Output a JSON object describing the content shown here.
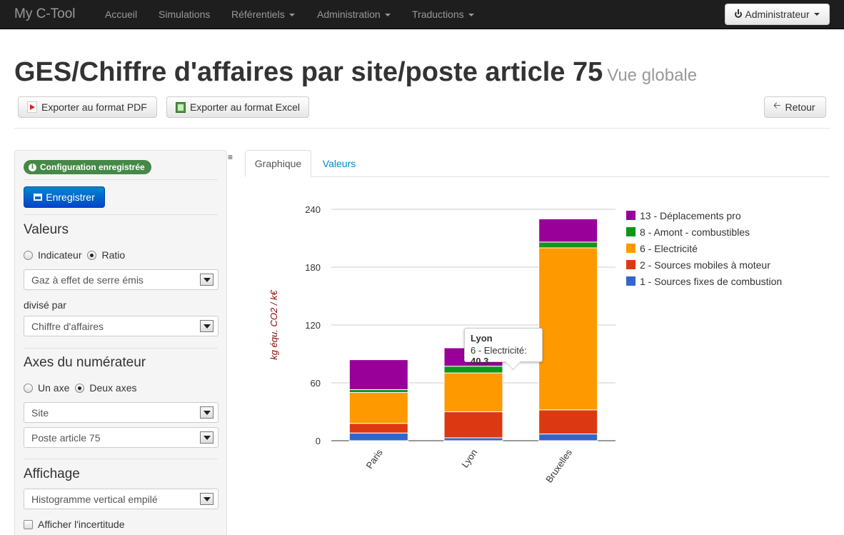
{
  "navbar": {
    "brand": "My C-Tool",
    "items": [
      {
        "label": "Accueil"
      },
      {
        "label": "Simulations"
      },
      {
        "label": "Référentiels"
      },
      {
        "label": "Administration"
      },
      {
        "label": "Traductions"
      }
    ],
    "user_button": "Administrateur"
  },
  "header": {
    "title": "GES/Chiffre d'affaires par site/poste article 75",
    "subtitle": "Vue globale"
  },
  "toolbar": {
    "export_pdf": "Exporter au format PDF",
    "export_excel": "Exporter au format Excel",
    "back": "Retour"
  },
  "sidebar": {
    "status_badge": "Configuration enregistrée",
    "save_button": "Enregistrer",
    "values_heading": "Valeurs",
    "value_mode": {
      "option1": "Indicateur",
      "option2": "Ratio",
      "selected": "Ratio"
    },
    "numerator_select": "Gaz à effet de serre émis",
    "divided_by_label": "divisé par",
    "denominator_select": "Chiffre d'affaires",
    "axes_heading": "Axes du numérateur",
    "axes_mode": {
      "option1": "Un axe",
      "option2": "Deux axes",
      "selected": "Deux axes"
    },
    "axis1_select": "Site",
    "axis2_select": "Poste article 75",
    "display_heading": "Affichage",
    "display_select": "Histogramme vertical empilé",
    "uncertainty_checkbox": "Afficher l'incertitude"
  },
  "tabs": [
    {
      "label": "Graphique",
      "active": true
    },
    {
      "label": "Valeurs",
      "active": false
    }
  ],
  "tooltip": {
    "title": "Lyon",
    "series": "6 - Electricité:",
    "value": "40,3"
  },
  "chart_data": {
    "type": "bar",
    "stacked": true,
    "categories": [
      "Paris",
      "Lyon",
      "Bruxelles"
    ],
    "ylabel": "kg équ. CO2 / k€",
    "ylim": [
      0,
      240
    ],
    "yticks": [
      0,
      60,
      120,
      180,
      240
    ],
    "grid": true,
    "legend_position": "right",
    "series": [
      {
        "name": "1 - Sources fixes de combustion",
        "color": "#3366cc",
        "values": [
          8,
          3,
          7
        ]
      },
      {
        "name": "2 - Sources mobiles à moteur",
        "color": "#dc3912",
        "values": [
          10,
          27,
          25
        ]
      },
      {
        "name": "6 - Electricité",
        "color": "#ff9900",
        "values": [
          32,
          40.3,
          168
        ]
      },
      {
        "name": "8 - Amont - combustibles",
        "color": "#109618",
        "values": [
          3,
          7,
          6
        ]
      },
      {
        "name": "13 - Déplacements pro",
        "color": "#990099",
        "values": [
          31,
          19,
          24
        ]
      }
    ]
  }
}
